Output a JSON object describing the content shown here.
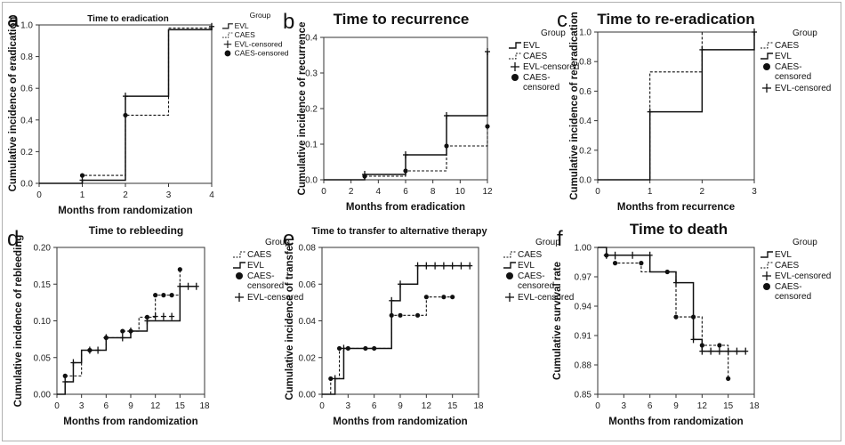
{
  "chart_data": [
    {
      "type": "line",
      "panel_letter": "a",
      "title": "Time to eradication",
      "xlabel": "Months from randomization",
      "ylabel": "Cumulative incidence of eradication",
      "xlim": [
        0,
        4
      ],
      "ylim": [
        0,
        1.0
      ],
      "x_ticks": [
        0,
        1,
        2,
        3,
        4
      ],
      "x_tick_labels": [
        "0",
        "1",
        "2",
        "3",
        "4"
      ],
      "y_ticks": [
        0,
        0.2,
        0.4,
        0.6,
        0.8,
        1.0
      ],
      "y_tick_labels": [
        "0.0",
        "0.2",
        "0.4",
        "0.6",
        "0.8",
        "1.0"
      ],
      "legend_title": "Group",
      "legend": [
        "EVL",
        "CAES",
        "EVL-censored",
        "CAES-censored"
      ],
      "series": [
        {
          "name": "EVL",
          "x": [
            0,
            1,
            2,
            3,
            4
          ],
          "y": [
            0,
            0.02,
            0.55,
            0.97,
            0.99
          ],
          "censored_x": [
            1,
            2,
            4
          ],
          "censored_y": [
            0.02,
            0.55,
            0.99
          ]
        },
        {
          "name": "CAES",
          "x": [
            0,
            1,
            2,
            3,
            4
          ],
          "y": [
            0,
            0.05,
            0.43,
            0.98,
            0.99
          ],
          "censored_x": [
            1,
            2
          ],
          "censored_y": [
            0.05,
            0.43
          ]
        }
      ]
    },
    {
      "type": "line",
      "panel_letter": "b",
      "title": "Time to recurrence",
      "xlabel": "Months from eradication",
      "ylabel": "Cumulative incidence of recurrence",
      "xlim": [
        0,
        12
      ],
      "ylim": [
        0,
        0.4
      ],
      "x_ticks": [
        0,
        2,
        4,
        6,
        8,
        10,
        12
      ],
      "x_tick_labels": [
        "0",
        "2",
        "4",
        "6",
        "8",
        "10",
        "12"
      ],
      "y_ticks": [
        0,
        0.1,
        0.2,
        0.3,
        0.4
      ],
      "y_tick_labels": [
        "0.0",
        "0.1",
        "0.2",
        "0.3",
        "0.4"
      ],
      "legend_title": "Group",
      "legend": [
        "EVL",
        "CAES",
        "EVL-censored",
        "CAES-censored"
      ],
      "series": [
        {
          "name": "EVL",
          "x": [
            0,
            3,
            6,
            9,
            12
          ],
          "y": [
            0,
            0.015,
            0.07,
            0.18,
            0.36
          ],
          "censored_x": [
            3,
            6,
            9,
            12
          ],
          "censored_y": [
            0.015,
            0.07,
            0.18,
            0.36
          ]
        },
        {
          "name": "CAES",
          "x": [
            0,
            3,
            6,
            9,
            12
          ],
          "y": [
            0,
            0.01,
            0.025,
            0.095,
            0.15
          ],
          "censored_x": [
            3,
            6,
            9,
            12
          ],
          "censored_y": [
            0.01,
            0.025,
            0.095,
            0.15
          ]
        }
      ]
    },
    {
      "type": "line",
      "panel_letter": "c",
      "title": "Time to re-eradication",
      "xlabel": "Months from recurrence",
      "ylabel": "Cumulative incidence of re-eradication",
      "xlim": [
        0,
        3
      ],
      "ylim": [
        0,
        1.0
      ],
      "x_ticks": [
        0,
        1,
        2,
        3
      ],
      "x_tick_labels": [
        "0",
        "1",
        "2",
        "3"
      ],
      "y_ticks": [
        0,
        0.2,
        0.4,
        0.6,
        0.8,
        1.0
      ],
      "y_tick_labels": [
        "0.0",
        "0.2",
        "0.4",
        "0.6",
        "0.8",
        "1.0"
      ],
      "legend_title": "Group",
      "legend": [
        "CAES",
        "EVL",
        "CAES-censored",
        "EVL-censored"
      ],
      "series": [
        {
          "name": "EVL",
          "x": [
            0,
            1,
            2,
            3
          ],
          "y": [
            0,
            0.46,
            0.88,
            1.0
          ],
          "censored_x": [
            1,
            2,
            3
          ],
          "censored_y": [
            0.46,
            0.88,
            1.0
          ]
        },
        {
          "name": "CAES",
          "x": [
            0,
            1,
            2
          ],
          "y": [
            0,
            0.73,
            1.0
          ],
          "censored_x": [],
          "censored_y": []
        }
      ]
    },
    {
      "type": "line",
      "panel_letter": "d",
      "title": "Time to rebleeding",
      "xlabel": "Months from randomization",
      "ylabel": "Cumulative incidence of rebleeding",
      "xlim": [
        0,
        18
      ],
      "ylim": [
        0,
        0.2
      ],
      "x_ticks": [
        0,
        3,
        6,
        9,
        12,
        15,
        18
      ],
      "x_tick_labels": [
        "0",
        "3",
        "6",
        "9",
        "12",
        "15",
        "18"
      ],
      "y_ticks": [
        0,
        0.05,
        0.1,
        0.15,
        0.2
      ],
      "y_tick_labels": [
        "0.00",
        "0.05",
        "0.10",
        "0.15",
        "0.20"
      ],
      "legend_title": "Group",
      "legend": [
        "CAES",
        "EVL",
        "CAES-censored",
        "EVL-censored"
      ],
      "series": [
        {
          "name": "EVL",
          "x": [
            0,
            1,
            2,
            3,
            6,
            9,
            11,
            15,
            17
          ],
          "y": [
            0,
            0.017,
            0.043,
            0.06,
            0.077,
            0.086,
            0.1,
            0.147,
            0.147
          ],
          "censored_x": [
            1,
            2,
            4,
            5,
            6,
            8,
            9,
            11,
            12,
            13,
            14,
            15,
            16,
            17
          ],
          "censored_y": [
            0.017,
            0.043,
            0.06,
            0.06,
            0.077,
            0.077,
            0.086,
            0.1,
            0.106,
            0.106,
            0.106,
            0.147,
            0.147,
            0.147
          ]
        },
        {
          "name": "CAES",
          "x": [
            0,
            1,
            3,
            6,
            8,
            10,
            12,
            15
          ],
          "y": [
            0,
            0.025,
            0.06,
            0.077,
            0.086,
            0.105,
            0.135,
            0.17
          ],
          "censored_x": [
            1,
            4,
            6,
            8,
            9,
            11,
            12,
            13,
            14,
            15
          ],
          "censored_y": [
            0.025,
            0.06,
            0.077,
            0.086,
            0.086,
            0.105,
            0.135,
            0.135,
            0.135,
            0.17
          ]
        }
      ]
    },
    {
      "type": "line",
      "panel_letter": "e",
      "title": "Time to transfer to alternative therapy",
      "xlabel": "Months from randomization",
      "ylabel": "Cumulative incidence of transfer",
      "xlim": [
        0,
        18
      ],
      "ylim": [
        0,
        0.08
      ],
      "x_ticks": [
        0,
        3,
        6,
        9,
        12,
        15,
        18
      ],
      "x_tick_labels": [
        "0",
        "3",
        "6",
        "9",
        "12",
        "15",
        "18"
      ],
      "y_ticks": [
        0,
        0.02,
        0.04,
        0.06,
        0.08
      ],
      "y_tick_labels": [
        "0.00",
        "0.02",
        "0.04",
        "0.06",
        "0.08"
      ],
      "legend_title": "Group",
      "legend": [
        "CAES",
        "EVL",
        "CAES-censored",
        "EVL-censored"
      ],
      "series": [
        {
          "name": "EVL",
          "x": [
            0,
            1.5,
            2.5,
            8,
            9,
            11,
            17
          ],
          "y": [
            0,
            0.0085,
            0.025,
            0.051,
            0.06,
            0.07,
            0.07
          ],
          "censored_x": [
            1.5,
            2.5,
            8,
            9,
            11,
            12,
            13,
            14,
            15,
            16,
            17
          ],
          "censored_y": [
            0.0085,
            0.025,
            0.051,
            0.06,
            0.07,
            0.07,
            0.07,
            0.07,
            0.07,
            0.07,
            0.07
          ]
        },
        {
          "name": "CAES",
          "x": [
            0,
            1,
            2,
            8,
            12,
            15
          ],
          "y": [
            0,
            0.0085,
            0.025,
            0.043,
            0.053,
            0.053
          ],
          "censored_x": [
            1,
            2,
            3,
            5,
            6,
            8,
            9,
            11,
            12,
            14,
            15
          ],
          "censored_y": [
            0.0085,
            0.025,
            0.025,
            0.025,
            0.025,
            0.043,
            0.043,
            0.043,
            0.053,
            0.053,
            0.053
          ]
        }
      ]
    },
    {
      "type": "line",
      "panel_letter": "f",
      "title": "Time to death",
      "xlabel": "Months from randomization",
      "ylabel": "Cumulative survival rate",
      "xlim": [
        0,
        18
      ],
      "ylim": [
        0.85,
        1.0
      ],
      "x_ticks": [
        0,
        3,
        6,
        9,
        12,
        15,
        18
      ],
      "x_tick_labels": [
        "0",
        "3",
        "6",
        "9",
        "12",
        "15",
        "18"
      ],
      "y_ticks": [
        0.85,
        0.88,
        0.91,
        0.94,
        0.97,
        1.0
      ],
      "y_tick_labels": [
        "0.85",
        "0.88",
        "0.91",
        "0.94",
        "0.97",
        "1.00"
      ],
      "legend_title": "Group",
      "legend": [
        "EVL",
        "CAES",
        "EVL-censored",
        "CAES-censored"
      ],
      "series": [
        {
          "name": "EVL",
          "x": [
            0,
            1,
            6,
            9,
            11,
            12,
            17
          ],
          "y": [
            1.0,
            0.992,
            0.975,
            0.964,
            0.906,
            0.894,
            0.894
          ],
          "censored_x": [
            1,
            2,
            4,
            6,
            9,
            11,
            12,
            13,
            14,
            15,
            16,
            17
          ],
          "censored_y": [
            0.992,
            0.992,
            0.992,
            0.992,
            0.964,
            0.906,
            0.894,
            0.894,
            0.894,
            0.894,
            0.894,
            0.894
          ]
        },
        {
          "name": "CAES",
          "x": [
            0,
            1,
            2,
            5,
            8,
            9,
            11,
            12,
            15
          ],
          "y": [
            1.0,
            0.992,
            0.984,
            0.975,
            0.975,
            0.929,
            0.929,
            0.9,
            0.866
          ],
          "censored_x": [
            1,
            2,
            5,
            8,
            9,
            11,
            12,
            14,
            15
          ],
          "censored_y": [
            0.992,
            0.984,
            0.984,
            0.975,
            0.929,
            0.929,
            0.9,
            0.9,
            0.866
          ]
        }
      ]
    }
  ]
}
